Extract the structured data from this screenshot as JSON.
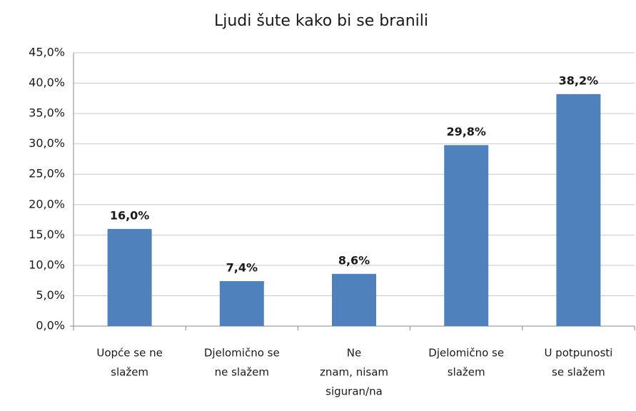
{
  "chart_data": {
    "type": "bar",
    "title": "Ljudi šute kako bi se branili",
    "categories": [
      [
        "Uopće se ne",
        "slažem"
      ],
      [
        "Djelomično se",
        "ne slažem"
      ],
      [
        "Ne",
        "znam, nisam",
        "siguran/na"
      ],
      [
        "Djelomično se",
        "slažem"
      ],
      [
        "U potpunosti",
        "se slažem"
      ]
    ],
    "values": [
      16.0,
      7.4,
      8.6,
      29.8,
      38.2
    ],
    "value_labels": [
      "16,0%",
      "7,4%",
      "8,6%",
      "29,8%",
      "38,2%"
    ],
    "color": "#4f81bd",
    "ylim": [
      0,
      45
    ],
    "yticks": [
      {
        "value": 0,
        "label": "0,0%"
      },
      {
        "value": 5,
        "label": "5,0%"
      },
      {
        "value": 10,
        "label": "10,0%"
      },
      {
        "value": 15,
        "label": "15,0%"
      },
      {
        "value": 20,
        "label": "20,0%"
      },
      {
        "value": 25,
        "label": "25,0%"
      },
      {
        "value": 30,
        "label": "30,0%"
      },
      {
        "value": 35,
        "label": "35,0%"
      },
      {
        "value": 40,
        "label": "40,0%"
      },
      {
        "value": 45,
        "label": "45,0%"
      }
    ],
    "grid": true
  }
}
